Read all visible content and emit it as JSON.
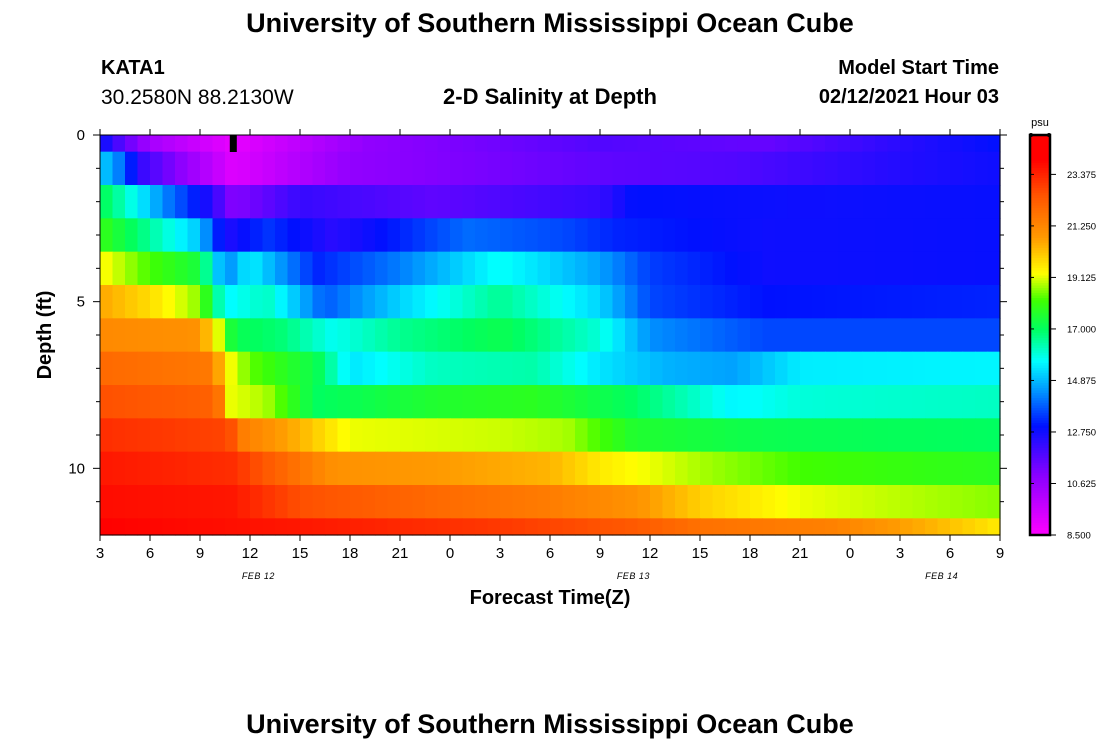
{
  "page": {
    "title_top": "University of Southern Mississippi Ocean Cube",
    "title_bottom": "University of Southern Mississippi Ocean Cube",
    "station_id": "KATA1",
    "coordinates": "30.2580N 88.2130W",
    "subtitle": "2-D Salinity at Depth",
    "model_start_label": "Model Start Time",
    "model_start_value": "02/12/2021 Hour 03"
  },
  "chart_data": {
    "type": "heatmap",
    "title": "2-D Salinity at Depth",
    "xlabel": "Forecast Time(Z)",
    "ylabel": "Depth (ft)",
    "x_hours": [
      0,
      3,
      6,
      9,
      12,
      15,
      18,
      21,
      24,
      27,
      30,
      33,
      36,
      39,
      42,
      45,
      48,
      51,
      54
    ],
    "x_tick_labels": [
      "3",
      "6",
      "9",
      "12",
      "15",
      "18",
      "21",
      "0",
      "3",
      "6",
      "9",
      "12",
      "15",
      "18",
      "21",
      "0",
      "3",
      "6",
      "9"
    ],
    "x_range_hours": [
      0,
      54
    ],
    "date_labels": [
      {
        "text": "FEB 12",
        "hour": 9.5
      },
      {
        "text": "FEB 13",
        "hour": 32
      },
      {
        "text": "FEB 14",
        "hour": 50.5
      }
    ],
    "y_ticks": [
      0,
      5,
      10
    ],
    "y_tick_labels": [
      "0",
      "5",
      "10"
    ],
    "y_minor_ticks": [
      1,
      2,
      3,
      4,
      6,
      7,
      8,
      9,
      11
    ],
    "y_range": [
      0,
      12
    ],
    "depth_levels": 12,
    "series_profiles": [
      {
        "name": "row0",
        "points": [
          [
            0,
            13.0
          ],
          [
            1,
            12.0
          ],
          [
            3,
            10.4
          ],
          [
            8,
            9.0
          ],
          [
            16,
            10.8
          ],
          [
            30,
            11.8
          ],
          [
            40,
            11.5
          ],
          [
            48,
            12.4
          ],
          [
            54,
            13.0
          ]
        ]
      },
      {
        "name": "row1",
        "points": [
          [
            0,
            15.2
          ],
          [
            1,
            14.4
          ],
          [
            2.5,
            12.2
          ],
          [
            5,
            10.8
          ],
          [
            8,
            9.2
          ],
          [
            15,
            10.8
          ],
          [
            30,
            11.6
          ],
          [
            38,
            11.8
          ],
          [
            48,
            12.5
          ],
          [
            54,
            12.8
          ]
        ]
      },
      {
        "name": "row2",
        "points": [
          [
            0,
            17.2
          ],
          [
            1.5,
            16.2
          ],
          [
            4,
            14.2
          ],
          [
            6.5,
            12.6
          ],
          [
            8,
            11.0
          ],
          [
            12,
            12.2
          ],
          [
            20,
            11.6
          ],
          [
            30,
            12.2
          ],
          [
            32,
            13.0
          ],
          [
            42,
            12.8
          ],
          [
            54,
            12.9
          ]
        ]
      },
      {
        "name": "row3",
        "points": [
          [
            0,
            18.0
          ],
          [
            3,
            16.5
          ],
          [
            6,
            15.0
          ],
          [
            7.5,
            12.5
          ],
          [
            10,
            13.4
          ],
          [
            14,
            12.4
          ],
          [
            22,
            14.0
          ],
          [
            28,
            13.6
          ],
          [
            31,
            13.2
          ],
          [
            40,
            12.8
          ],
          [
            54,
            12.9
          ]
        ]
      },
      {
        "name": "row4",
        "points": [
          [
            0,
            19.4
          ],
          [
            3,
            18.2
          ],
          [
            6,
            17.4
          ],
          [
            7.5,
            14.2
          ],
          [
            9,
            15.6
          ],
          [
            13,
            13.2
          ],
          [
            18,
            14.2
          ],
          [
            24,
            15.8
          ],
          [
            30,
            14.6
          ],
          [
            33,
            13.5
          ],
          [
            40,
            12.8
          ],
          [
            54,
            12.9
          ]
        ]
      },
      {
        "name": "row5",
        "points": [
          [
            0,
            20.6
          ],
          [
            3,
            19.8
          ],
          [
            6,
            18.6
          ],
          [
            7.5,
            15.6
          ],
          [
            10,
            16.2
          ],
          [
            13.5,
            13.8
          ],
          [
            18,
            15.2
          ],
          [
            24,
            16.6
          ],
          [
            30,
            15.2
          ],
          [
            33,
            13.6
          ],
          [
            40,
            13.0
          ],
          [
            54,
            13.2
          ]
        ]
      },
      {
        "name": "row6",
        "points": [
          [
            0,
            21.2
          ],
          [
            6,
            21.0
          ],
          [
            7.2,
            19.0
          ],
          [
            8,
            17.2
          ],
          [
            11,
            16.8
          ],
          [
            14,
            15.8
          ],
          [
            18,
            16.6
          ],
          [
            24,
            17.2
          ],
          [
            30,
            16.0
          ],
          [
            33,
            14.4
          ],
          [
            40,
            13.6
          ],
          [
            54,
            13.6
          ]
        ]
      },
      {
        "name": "row7",
        "points": [
          [
            0,
            22.0
          ],
          [
            6.8,
            21.6
          ],
          [
            7.5,
            19.5
          ],
          [
            9,
            18.4
          ],
          [
            13,
            17.2
          ],
          [
            15,
            15.4
          ],
          [
            20,
            16.2
          ],
          [
            26,
            16.4
          ],
          [
            30,
            15.4
          ],
          [
            34,
            14.8
          ],
          [
            38,
            14.6
          ],
          [
            42,
            15.5
          ],
          [
            54,
            15.6
          ]
        ]
      },
      {
        "name": "row8",
        "points": [
          [
            0,
            22.6
          ],
          [
            7,
            22.2
          ],
          [
            7.8,
            19.2
          ],
          [
            10,
            18.8
          ],
          [
            13,
            17.0
          ],
          [
            20,
            17.6
          ],
          [
            26,
            17.8
          ],
          [
            32,
            17.0
          ],
          [
            38,
            15.6
          ],
          [
            42,
            16.0
          ],
          [
            54,
            16.2
          ]
        ]
      },
      {
        "name": "row9",
        "points": [
          [
            0,
            23.2
          ],
          [
            7.8,
            22.8
          ],
          [
            8.2,
            21.6
          ],
          [
            12,
            20.4
          ],
          [
            15,
            19.2
          ],
          [
            24,
            19.0
          ],
          [
            28,
            18.8
          ],
          [
            32,
            17.6
          ],
          [
            40,
            17.2
          ],
          [
            54,
            17.0
          ]
        ]
      },
      {
        "name": "row10",
        "points": [
          [
            0,
            23.6
          ],
          [
            8,
            23.2
          ],
          [
            10,
            22.4
          ],
          [
            14,
            21.0
          ],
          [
            20,
            20.8
          ],
          [
            27,
            20.4
          ],
          [
            30,
            19.6
          ],
          [
            36,
            18.8
          ],
          [
            42,
            18.2
          ],
          [
            54,
            17.8
          ]
        ]
      },
      {
        "name": "row11",
        "points": [
          [
            0,
            23.8
          ],
          [
            8,
            23.6
          ],
          [
            12,
            22.6
          ],
          [
            20,
            22.0
          ],
          [
            26,
            21.6
          ],
          [
            32,
            21.0
          ],
          [
            36,
            20.0
          ],
          [
            42,
            19.2
          ],
          [
            54,
            18.6
          ]
        ]
      },
      {
        "name": "row12",
        "points": [
          [
            0,
            24.0
          ],
          [
            12,
            23.6
          ],
          [
            24,
            23.0
          ],
          [
            32,
            22.4
          ],
          [
            36,
            21.8
          ],
          [
            44,
            21.4
          ],
          [
            50,
            20.4
          ],
          [
            54,
            19.6
          ]
        ]
      }
    ],
    "colorbar": {
      "unit": "psu",
      "min": 8.5,
      "max": 25.0,
      "tick_values": [
        8.5,
        10.625,
        12.75,
        14.875,
        17.0,
        19.125,
        21.25,
        23.375
      ],
      "tick_labels": [
        "8.500",
        "10.625",
        "12.750",
        "14.875",
        "17.000",
        "19.125",
        "21.250",
        "23.375"
      ],
      "stops": [
        {
          "v": 8.5,
          "color": "#ff00ff"
        },
        {
          "v": 11.0,
          "color": "#8800ff"
        },
        {
          "v": 13.0,
          "color": "#0010ff"
        },
        {
          "v": 14.4,
          "color": "#0090ff"
        },
        {
          "v": 15.7,
          "color": "#00ffff"
        },
        {
          "v": 17.0,
          "color": "#00ff60"
        },
        {
          "v": 18.2,
          "color": "#40ff00"
        },
        {
          "v": 19.3,
          "color": "#ffff00"
        },
        {
          "v": 20.8,
          "color": "#ff9900"
        },
        {
          "v": 22.5,
          "color": "#ff5500"
        },
        {
          "v": 24.0,
          "color": "#ff0000"
        }
      ]
    },
    "current_time_marker_hour": 8
  }
}
